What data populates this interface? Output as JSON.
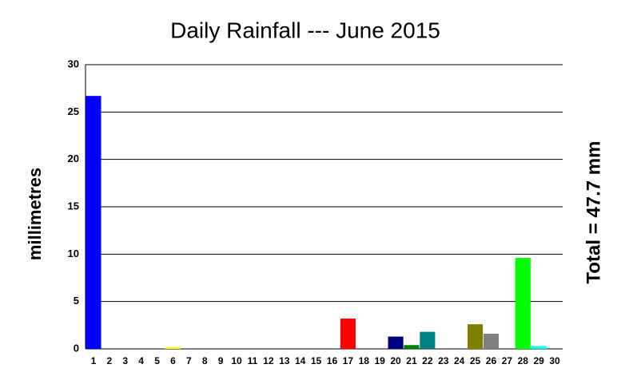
{
  "chart_data": {
    "type": "bar",
    "title": "Daily Rainfall --- June 2015",
    "y_label": "millimetres",
    "annotation": "Total = 47.7 mm",
    "categories": [
      "1",
      "2",
      "3",
      "4",
      "5",
      "6",
      "7",
      "8",
      "9",
      "10",
      "11",
      "12",
      "13",
      "14",
      "15",
      "16",
      "17",
      "18",
      "19",
      "20",
      "21",
      "22",
      "23",
      "24",
      "25",
      "26",
      "27",
      "28",
      "29",
      "30"
    ],
    "values": [
      26.7,
      0,
      0,
      0,
      0,
      0.2,
      0,
      0,
      0,
      0,
      0,
      0,
      0,
      0,
      0,
      0,
      3.2,
      0,
      0,
      1.3,
      0.4,
      1.8,
      0,
      0,
      2.6,
      1.6,
      0,
      9.6,
      0.3,
      0
    ],
    "colors": [
      "#0000ff",
      "#000000",
      "#000000",
      "#000000",
      "#000000",
      "#ffff00",
      "#000000",
      "#000000",
      "#000000",
      "#000000",
      "#000000",
      "#000000",
      "#000000",
      "#000000",
      "#000000",
      "#000000",
      "#ff0000",
      "#000000",
      "#000000",
      "#000080",
      "#008000",
      "#008080",
      "#000000",
      "#000000",
      "#808000",
      "#808080",
      "#000000",
      "#00ff00",
      "#00ffff",
      "#000000"
    ],
    "ylim": [
      0,
      30
    ],
    "yticks": [
      0,
      5,
      10,
      15,
      20,
      25,
      30
    ],
    "grid": true
  }
}
